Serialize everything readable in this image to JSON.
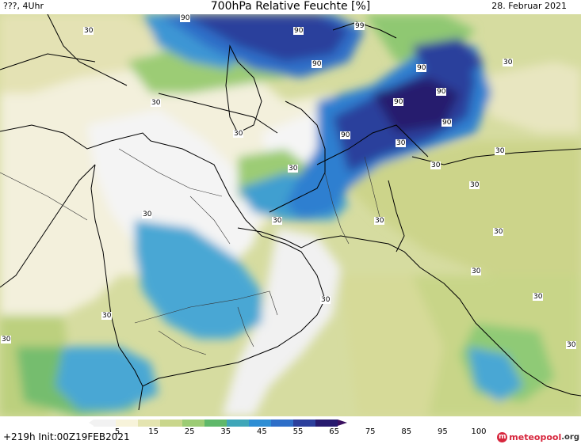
{
  "header": {
    "left_text": "???, 4Uhr",
    "title": "700hPa Relative Feuchte [%]",
    "date": "28. Februar 2021"
  },
  "map": {
    "contour_labels": [
      "90",
      "90",
      "99",
      "90",
      "90",
      "90",
      "90",
      "90",
      "90",
      "30",
      "30",
      "30",
      "30",
      "30",
      "30",
      "30",
      "30",
      "30",
      "30",
      "30",
      "30",
      "30",
      "30",
      "30",
      "30",
      "30",
      "30",
      "30"
    ]
  },
  "legend": {
    "ticks": [
      "5",
      "15",
      "25",
      "35",
      "45",
      "55",
      "65",
      "75",
      "85",
      "95",
      "100"
    ],
    "colors": [
      "#f2f2f2",
      "#f7f3da",
      "#e4e4b0",
      "#c9d68c",
      "#9ccc74",
      "#5fb86a",
      "#3fa6b8",
      "#2e8ed4",
      "#2e6ec8",
      "#2c3f9c",
      "#271a6e",
      "#3b1060"
    ]
  },
  "footer": {
    "run_info": "+219h  Init:00Z19FEB2021",
    "brand_icon": "m",
    "brand_name": "meteopool",
    "brand_suffix": ".org"
  }
}
